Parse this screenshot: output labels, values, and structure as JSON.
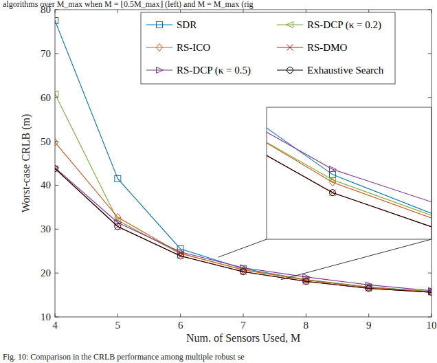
{
  "chart_data": {
    "type": "line",
    "annotations": [
      "algorithms over M_max when M = ⌊0.5M_max⌋ (left) and M = M_max (rig",
      "Fig. 10: Comparison in the CRLB performance among multiple robust se"
    ],
    "x_label": "Num. of Sensors Used, M",
    "y_label": "Worst-case CRLB (m)",
    "x": [
      4,
      5,
      6,
      7,
      8,
      9,
      10
    ],
    "xlim": [
      4,
      10
    ],
    "xticks": [
      4,
      5,
      6,
      7,
      8,
      9,
      10
    ],
    "ylim": [
      10,
      80
    ],
    "yticks": [
      10,
      20,
      30,
      40,
      50,
      60,
      70,
      80
    ],
    "grid": false,
    "legend": "upper right",
    "inset": {
      "xlim": [
        6.6,
        7.6
      ],
      "ylim": [
        18.5,
        23.6
      ]
    },
    "series": [
      {
        "name": "SDR",
        "color": "#0072bd",
        "marker": "square",
        "line_style": "solid",
        "values": [
          77.5,
          41.5,
          25.5,
          21.0,
          18.5,
          16.8,
          15.8
        ]
      },
      {
        "name": "RS-DCP (κ = 0.2)",
        "color": "#77ac30",
        "marker": "triangle-left",
        "line_style": "solid",
        "values": [
          60.8,
          32.0,
          24.4,
          20.8,
          18.5,
          16.8,
          15.8
        ]
      },
      {
        "name": "RS-ICO",
        "color": "#d95319",
        "marker": "diamond",
        "line_style": "solid",
        "values": [
          49.8,
          32.7,
          24.5,
          20.7,
          18.4,
          16.7,
          15.7
        ]
      },
      {
        "name": "RS-DMO",
        "color": "#ff0000",
        "marker": "x",
        "line_style": "solid",
        "values": [
          43.8,
          30.6,
          23.9,
          20.3,
          18.1,
          16.5,
          15.6
        ]
      },
      {
        "name": "RS-DCP (κ = 0.5)",
        "color": "#7e2f8e",
        "marker": "triangle-right",
        "line_style": "solid",
        "values": [
          44.0,
          31.5,
          24.8,
          21.2,
          19.1,
          17.3,
          16.0
        ]
      },
      {
        "name": "Exhaustive Search",
        "color": "#000000",
        "marker": "circle",
        "line_style": "solid",
        "values": [
          43.8,
          30.6,
          23.9,
          20.3,
          18.1,
          16.5,
          15.6
        ]
      }
    ]
  }
}
